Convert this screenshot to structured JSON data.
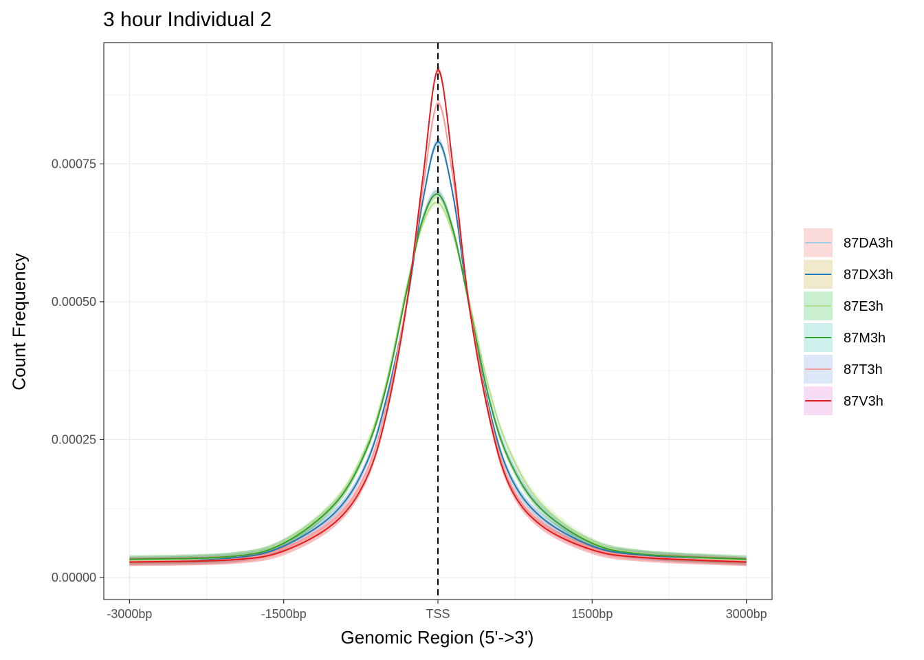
{
  "chart_data": {
    "type": "line",
    "title": "3 hour Individual 2",
    "xlabel": "Genomic Region (5'->3')",
    "ylabel": "Count Frequency",
    "xlim": [
      -3250,
      3250
    ],
    "ylim": [
      -4e-05,
      0.00097
    ],
    "x_ticks": [
      -3000,
      -1500,
      0,
      1500,
      3000
    ],
    "x_tick_labels": [
      "-3000bp",
      "-1500bp",
      "TSS",
      "1500bp",
      "3000bp"
    ],
    "y_ticks": [
      0,
      0.00025,
      0.0005,
      0.00075
    ],
    "y_tick_labels": [
      "0.00000",
      "0.00025",
      "0.00050",
      "0.00075"
    ],
    "reference_line": {
      "x": 0,
      "style": "dashed"
    },
    "grid": true,
    "legend_position": "right",
    "series": [
      {
        "name": "87DA3h",
        "color": "#a6cee3",
        "fill": "#fbdada",
        "x": [
          -3000,
          -2000,
          -1500,
          -1000,
          -700,
          -500,
          -300,
          -150,
          0,
          150,
          300,
          500,
          700,
          1000,
          1500,
          2000,
          3000
        ],
        "values": [
          3e-05,
          3.8e-05,
          6.2e-05,
          0.000135,
          0.000232,
          0.00035,
          0.000525,
          0.00065,
          0.0007,
          0.00063,
          0.0005,
          0.000325,
          0.000215,
          0.000128,
          6.2e-05,
          4.2e-05,
          3e-05
        ]
      },
      {
        "name": "87DX3h",
        "color": "#1f78b4",
        "fill": "#f0e9cb",
        "x": [
          -3000,
          -2000,
          -1500,
          -1000,
          -700,
          -500,
          -300,
          -150,
          0,
          150,
          300,
          500,
          700,
          1000,
          1500,
          2000,
          3000
        ],
        "values": [
          3e-05,
          3.5e-05,
          5.7e-05,
          0.000118,
          0.000205,
          0.000325,
          0.0005,
          0.00068,
          0.00079,
          0.00069,
          0.000495,
          0.000305,
          0.000185,
          0.00011,
          5.7e-05,
          4e-05,
          3e-05
        ]
      },
      {
        "name": "87E3h",
        "color": "#b2df8a",
        "fill": "#c9efd0",
        "x": [
          -3000,
          -2000,
          -1500,
          -1000,
          -700,
          -500,
          -300,
          -150,
          0,
          150,
          300,
          500,
          700,
          1000,
          1500,
          2000,
          3000
        ],
        "values": [
          3e-05,
          3.8e-05,
          6.4e-05,
          0.000138,
          0.000236,
          0.000355,
          0.00053,
          0.00064,
          0.00068,
          0.00062,
          0.000505,
          0.00034,
          0.000228,
          0.000135,
          6.5e-05,
          4.3e-05,
          3e-05
        ]
      },
      {
        "name": "87M3h",
        "color": "#33a02c",
        "fill": "#cdf0ed",
        "x": [
          -3000,
          -2000,
          -1500,
          -1000,
          -700,
          -500,
          -300,
          -150,
          0,
          150,
          300,
          500,
          700,
          1000,
          1500,
          2000,
          3000
        ],
        "values": [
          3.3e-05,
          3.8e-05,
          6.2e-05,
          0.000134,
          0.00023,
          0.000348,
          0.000523,
          0.000648,
          0.000695,
          0.000628,
          0.000498,
          0.000322,
          0.00021,
          0.000125,
          6.2e-05,
          4.2e-05,
          3.3e-05
        ]
      },
      {
        "name": "87T3h",
        "color": "#fb9a99",
        "fill": "#dce8f8",
        "x": [
          -3000,
          -2000,
          -1500,
          -1000,
          -700,
          -500,
          -300,
          -150,
          0,
          150,
          300,
          500,
          700,
          1000,
          1500,
          2000,
          3000
        ],
        "values": [
          2.9e-05,
          3.3e-05,
          5.3e-05,
          0.000108,
          0.00019,
          0.000312,
          0.000505,
          0.0007,
          0.00086,
          0.00072,
          0.0005,
          0.000298,
          0.000172,
          0.0001,
          5.3e-05,
          3.8e-05,
          2.9e-05
        ]
      },
      {
        "name": "87V3h",
        "color": "#e31a1c",
        "fill": "#f8dcf5",
        "x": [
          -3000,
          -2000,
          -1500,
          -1000,
          -700,
          -500,
          -300,
          -150,
          0,
          150,
          300,
          500,
          700,
          1000,
          1500,
          2000,
          3000
        ],
        "values": [
          2.8e-05,
          3.2e-05,
          4.8e-05,
          0.0001,
          0.000178,
          0.000298,
          0.0005,
          0.00072,
          0.00092,
          0.00074,
          0.000498,
          0.00029,
          0.000165,
          9.5e-05,
          5e-05,
          3.6e-05,
          2.8e-05
        ]
      }
    ]
  }
}
